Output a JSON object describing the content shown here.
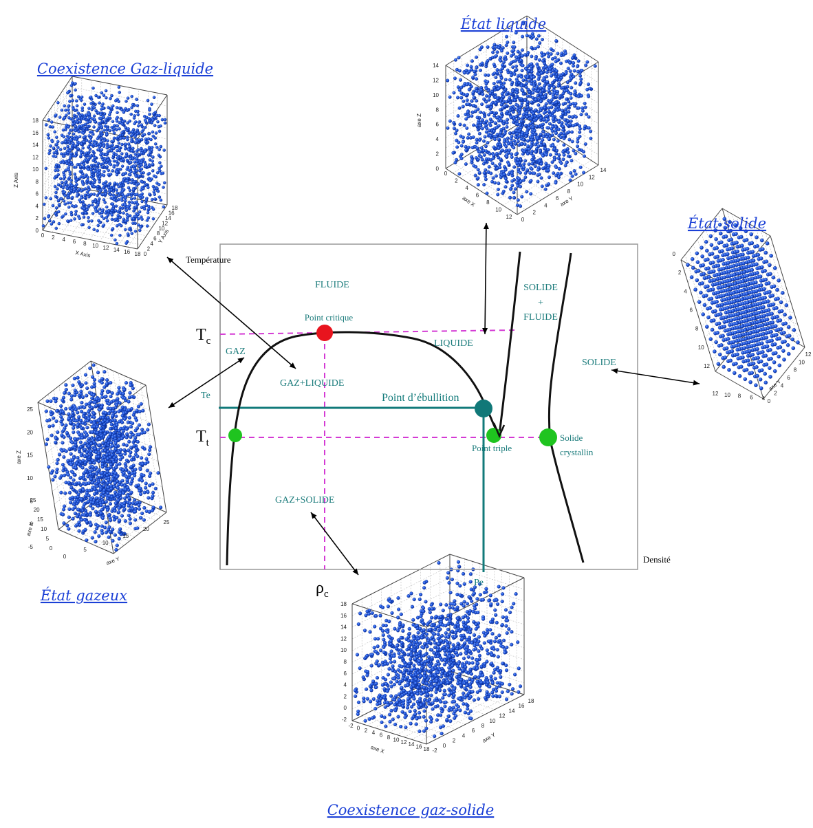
{
  "captions": {
    "liquid": "État liquide",
    "gas_liquid": "Coexistence Gaz-liquide",
    "solid": "État solide",
    "gas": "État gazeux",
    "gas_solid": "Coexistence gaz-solide"
  },
  "axes": {
    "temperature": "Température",
    "density": "Densité"
  },
  "markers": {
    "tc_main": "T",
    "tc_sub": "c",
    "tt_main": "T",
    "tt_sub": "t",
    "rho_main": "ρ",
    "rho_sub": "c",
    "te": "Te",
    "pe": "Pe"
  },
  "regions": {
    "fluide": "FLUIDE",
    "gaz": "GAZ",
    "liquide": "LIQUIDE",
    "gaz_liquide": "GAZ+LIQUIDE",
    "gaz_solide": "GAZ+SOLIDE",
    "solide": "SOLIDE",
    "solide_fluide_1": "SOLIDE",
    "solide_fluide_2": "+",
    "solide_fluide_3": "FLUIDE"
  },
  "points": {
    "critical": "Point critique",
    "boiling": "Point d’ébullition",
    "triple": "Point triple",
    "crystal_1": "Solide",
    "crystal_2": "crystallin"
  },
  "boxes": {
    "gas_liquid": {
      "x_axis": "X Axis",
      "y_axis": "Y Axis",
      "z_axis": "Z Axis",
      "x_ticks": [
        "0",
        "2",
        "4",
        "6",
        "8",
        "10",
        "12",
        "14",
        "16",
        "18"
      ],
      "y_ticks": [
        "0",
        "2",
        "4",
        "6",
        "8",
        "10",
        "12",
        "14",
        "16",
        "18"
      ],
      "z_ticks": [
        "0",
        "2",
        "4",
        "6",
        "8",
        "10",
        "12",
        "14",
        "16",
        "18"
      ]
    },
    "liquid": {
      "x_axis": "axe X",
      "y_axis": "axe Y",
      "z_axis": "axe Z",
      "x_ticks": [
        "0",
        "2",
        "4",
        "6",
        "8",
        "10",
        "12"
      ],
      "y_ticks": [
        "0",
        "2",
        "4",
        "6",
        "8",
        "10",
        "12",
        "14"
      ],
      "z_ticks": [
        "0",
        "2",
        "4",
        "6",
        "8",
        "10",
        "12",
        "14"
      ]
    },
    "solid": {
      "x_axis": "",
      "y_axis": "axe Y",
      "z_axis": "",
      "x_ticks": [
        "12",
        "10",
        "8",
        "6",
        "4"
      ],
      "y_ticks": [
        "0",
        "2",
        "4",
        "6",
        "8",
        "10",
        "12"
      ],
      "z_ticks": [
        "0",
        "2",
        "4",
        "6",
        "8",
        "10",
        "12"
      ]
    },
    "gas": {
      "x_axis": "axe X",
      "y_axis": "axe Y",
      "z_axis": "axe Z",
      "x_ticks": [
        "25",
        "20",
        "15",
        "10",
        "5",
        "0"
      ],
      "y_ticks": [
        "0",
        "5",
        "10",
        "15",
        "20",
        "25"
      ],
      "z_ticks": [
        "-5",
        "0",
        "5",
        "10",
        "15",
        "20",
        "25"
      ]
    },
    "gas_solid": {
      "x_axis": "axe X",
      "y_axis": "axe Y",
      "z_axis": "",
      "x_ticks": [
        "-2",
        "0",
        "2",
        "4",
        "6",
        "8",
        "10",
        "12",
        "14",
        "16",
        "18"
      ],
      "y_ticks": [
        "-2",
        "0",
        "2",
        "4",
        "6",
        "8",
        "10",
        "12",
        "14",
        "16",
        "18"
      ],
      "z_ticks": [
        "-2",
        "0",
        "2",
        "4",
        "6",
        "8",
        "10",
        "12",
        "14",
        "16",
        "18"
      ]
    }
  },
  "colors": {
    "caption": "#1a3fd6",
    "teal": "#117a7a",
    "region_text": "#1c7c7c",
    "dash": "#d43ad4",
    "critical_point": "#e8141e",
    "green_point": "#1fc41f",
    "boiling_point": "#107878",
    "particle": "#1f57e0",
    "particle_dark": "#0d2f96"
  }
}
